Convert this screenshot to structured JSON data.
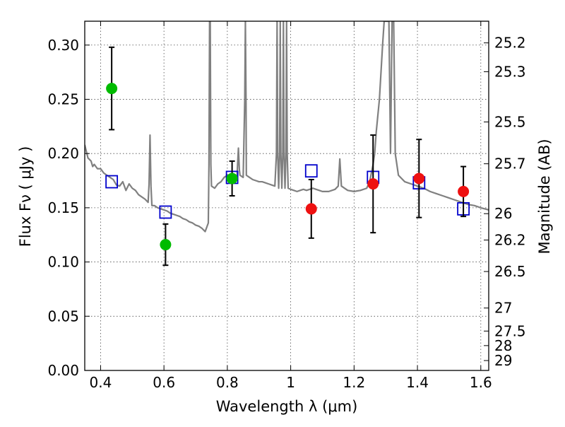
{
  "chart_data": {
    "type": "scatter",
    "xlabel": "Wavelength  λ (μm)",
    "ylabel": "Flux  Fν  ( μJy )",
    "y2label": "Magnitude (AB)",
    "xlim": [
      0.35,
      1.625
    ],
    "ylim": [
      0.0,
      0.322
    ],
    "grid": true,
    "x_ticks": [
      {
        "value": 0.4,
        "label": "0.4"
      },
      {
        "value": 0.6,
        "label": "0.6"
      },
      {
        "value": 0.8,
        "label": "0.8"
      },
      {
        "value": 1.0,
        "label": "1"
      },
      {
        "value": 1.2,
        "label": "1.2"
      },
      {
        "value": 1.4,
        "label": "1.4"
      },
      {
        "value": 1.6,
        "label": "1.6"
      }
    ],
    "y_ticks": [
      {
        "value": 0.0,
        "label": "0.00"
      },
      {
        "value": 0.05,
        "label": "0.05"
      },
      {
        "value": 0.1,
        "label": "0.10"
      },
      {
        "value": 0.15,
        "label": "0.15"
      },
      {
        "value": 0.2,
        "label": "0.20"
      },
      {
        "value": 0.25,
        "label": "0.25"
      },
      {
        "value": 0.3,
        "label": "0.30"
      }
    ],
    "y2_ticks": [
      {
        "value": 25.2,
        "label": "25.2"
      },
      {
        "value": 25.3,
        "label": "25.3"
      },
      {
        "value": 25.5,
        "label": "25.5"
      },
      {
        "value": 25.7,
        "label": "25.7"
      },
      {
        "value": 26.0,
        "label": "26"
      },
      {
        "value": 26.2,
        "label": "26.2"
      },
      {
        "value": 26.5,
        "label": "26.5"
      },
      {
        "value": 27.0,
        "label": "27"
      },
      {
        "value": 27.5,
        "label": "27.5"
      },
      {
        "value": 28.0,
        "label": "28"
      },
      {
        "value": 29.0,
        "label": "29"
      }
    ],
    "series": [
      {
        "kind": "line",
        "color": "#808080",
        "points": [
          [
            0.35,
            0.208
          ],
          [
            0.355,
            0.202
          ],
          [
            0.36,
            0.196
          ],
          [
            0.37,
            0.193
          ],
          [
            0.375,
            0.188
          ],
          [
            0.38,
            0.19
          ],
          [
            0.39,
            0.186
          ],
          [
            0.4,
            0.186
          ],
          [
            0.41,
            0.182
          ],
          [
            0.42,
            0.18
          ],
          [
            0.43,
            0.178
          ],
          [
            0.44,
            0.176
          ],
          [
            0.45,
            0.171
          ],
          [
            0.46,
            0.17
          ],
          [
            0.47,
            0.174
          ],
          [
            0.48,
            0.166
          ],
          [
            0.49,
            0.172
          ],
          [
            0.5,
            0.168
          ],
          [
            0.51,
            0.166
          ],
          [
            0.52,
            0.162
          ],
          [
            0.53,
            0.16
          ],
          [
            0.54,
            0.158
          ],
          [
            0.55,
            0.155
          ],
          [
            0.553,
            0.172
          ],
          [
            0.556,
            0.217
          ],
          [
            0.559,
            0.17
          ],
          [
            0.562,
            0.152
          ],
          [
            0.57,
            0.152
          ],
          [
            0.58,
            0.15
          ],
          [
            0.59,
            0.149
          ],
          [
            0.6,
            0.148
          ],
          [
            0.61,
            0.147
          ],
          [
            0.62,
            0.145
          ],
          [
            0.63,
            0.144
          ],
          [
            0.64,
            0.143
          ],
          [
            0.65,
            0.142
          ],
          [
            0.66,
            0.14
          ],
          [
            0.67,
            0.139
          ],
          [
            0.68,
            0.137
          ],
          [
            0.69,
            0.136
          ],
          [
            0.7,
            0.134
          ],
          [
            0.71,
            0.133
          ],
          [
            0.72,
            0.131
          ],
          [
            0.73,
            0.128
          ],
          [
            0.74,
            0.136
          ],
          [
            0.742,
            0.19
          ],
          [
            0.744,
            0.322
          ],
          [
            0.746,
            0.322
          ],
          [
            0.748,
            0.19
          ],
          [
            0.75,
            0.17
          ],
          [
            0.76,
            0.168
          ],
          [
            0.77,
            0.172
          ],
          [
            0.78,
            0.174
          ],
          [
            0.79,
            0.178
          ],
          [
            0.8,
            0.18
          ],
          [
            0.81,
            0.177
          ],
          [
            0.82,
            0.175
          ],
          [
            0.83,
            0.176
          ],
          [
            0.835,
            0.205
          ],
          [
            0.838,
            0.185
          ],
          [
            0.84,
            0.18
          ],
          [
            0.85,
            0.178
          ],
          [
            0.855,
            0.25
          ],
          [
            0.857,
            0.322
          ],
          [
            0.859,
            0.25
          ],
          [
            0.86,
            0.18
          ],
          [
            0.87,
            0.178
          ],
          [
            0.88,
            0.176
          ],
          [
            0.89,
            0.175
          ],
          [
            0.9,
            0.174
          ],
          [
            0.91,
            0.174
          ],
          [
            0.92,
            0.173
          ],
          [
            0.93,
            0.172
          ],
          [
            0.94,
            0.171
          ],
          [
            0.95,
            0.17
          ],
          [
            0.955,
            0.2
          ],
          [
            0.957,
            0.322
          ],
          [
            0.959,
            0.2
          ],
          [
            0.962,
            0.168
          ],
          [
            0.965,
            0.2
          ],
          [
            0.967,
            0.322
          ],
          [
            0.969,
            0.2
          ],
          [
            0.972,
            0.168
          ],
          [
            0.975,
            0.2
          ],
          [
            0.977,
            0.322
          ],
          [
            0.979,
            0.2
          ],
          [
            0.982,
            0.168
          ],
          [
            0.985,
            0.2
          ],
          [
            0.987,
            0.322
          ],
          [
            0.989,
            0.2
          ],
          [
            0.992,
            0.168
          ],
          [
            1.0,
            0.167
          ],
          [
            1.01,
            0.166
          ],
          [
            1.02,
            0.165
          ],
          [
            1.03,
            0.166
          ],
          [
            1.04,
            0.167
          ],
          [
            1.05,
            0.166
          ],
          [
            1.06,
            0.167
          ],
          [
            1.07,
            0.168
          ],
          [
            1.08,
            0.167
          ],
          [
            1.09,
            0.166
          ],
          [
            1.1,
            0.165
          ],
          [
            1.12,
            0.165
          ],
          [
            1.14,
            0.167
          ],
          [
            1.15,
            0.17
          ],
          [
            1.155,
            0.195
          ],
          [
            1.16,
            0.17
          ],
          [
            1.18,
            0.166
          ],
          [
            1.2,
            0.165
          ],
          [
            1.22,
            0.166
          ],
          [
            1.24,
            0.168
          ],
          [
            1.25,
            0.175
          ],
          [
            1.26,
            0.19
          ],
          [
            1.265,
            0.2
          ],
          [
            1.27,
            0.22
          ],
          [
            1.28,
            0.25
          ],
          [
            1.29,
            0.3
          ],
          [
            1.295,
            0.322
          ],
          [
            1.31,
            0.322
          ],
          [
            1.315,
            0.2
          ],
          [
            1.32,
            0.322
          ],
          [
            1.325,
            0.322
          ],
          [
            1.33,
            0.2
          ],
          [
            1.34,
            0.18
          ],
          [
            1.36,
            0.174
          ],
          [
            1.38,
            0.172
          ],
          [
            1.4,
            0.17
          ],
          [
            1.42,
            0.168
          ],
          [
            1.44,
            0.165
          ],
          [
            1.46,
            0.163
          ],
          [
            1.48,
            0.161
          ],
          [
            1.5,
            0.159
          ],
          [
            1.52,
            0.157
          ],
          [
            1.54,
            0.155
          ],
          [
            1.56,
            0.153
          ],
          [
            1.58,
            0.152
          ],
          [
            1.6,
            0.15
          ],
          [
            1.625,
            0.148
          ]
        ]
      },
      {
        "kind": "errorbar",
        "marker": "circle",
        "color": "#00bb00",
        "points": [
          {
            "x": 0.435,
            "y": 0.26,
            "err": 0.038
          },
          {
            "x": 0.605,
            "y": 0.116,
            "err": 0.019
          },
          {
            "x": 0.815,
            "y": 0.177,
            "err": 0.016
          }
        ]
      },
      {
        "kind": "errorbar",
        "marker": "circle",
        "color": "#ee1111",
        "points": [
          {
            "x": 1.065,
            "y": 0.149,
            "err": 0.027
          },
          {
            "x": 1.26,
            "y": 0.172,
            "err": 0.045
          },
          {
            "x": 1.405,
            "y": 0.177,
            "err": 0.036
          },
          {
            "x": 1.545,
            "y": 0.165,
            "err": 0.023
          }
        ]
      },
      {
        "kind": "scatter",
        "marker": "square-open",
        "color": "#0000cc",
        "points": [
          {
            "x": 0.435,
            "y": 0.174
          },
          {
            "x": 0.605,
            "y": 0.146
          },
          {
            "x": 0.815,
            "y": 0.178
          },
          {
            "x": 1.065,
            "y": 0.184
          },
          {
            "x": 1.26,
            "y": 0.178
          },
          {
            "x": 1.405,
            "y": 0.173
          },
          {
            "x": 1.545,
            "y": 0.149
          }
        ]
      }
    ]
  }
}
